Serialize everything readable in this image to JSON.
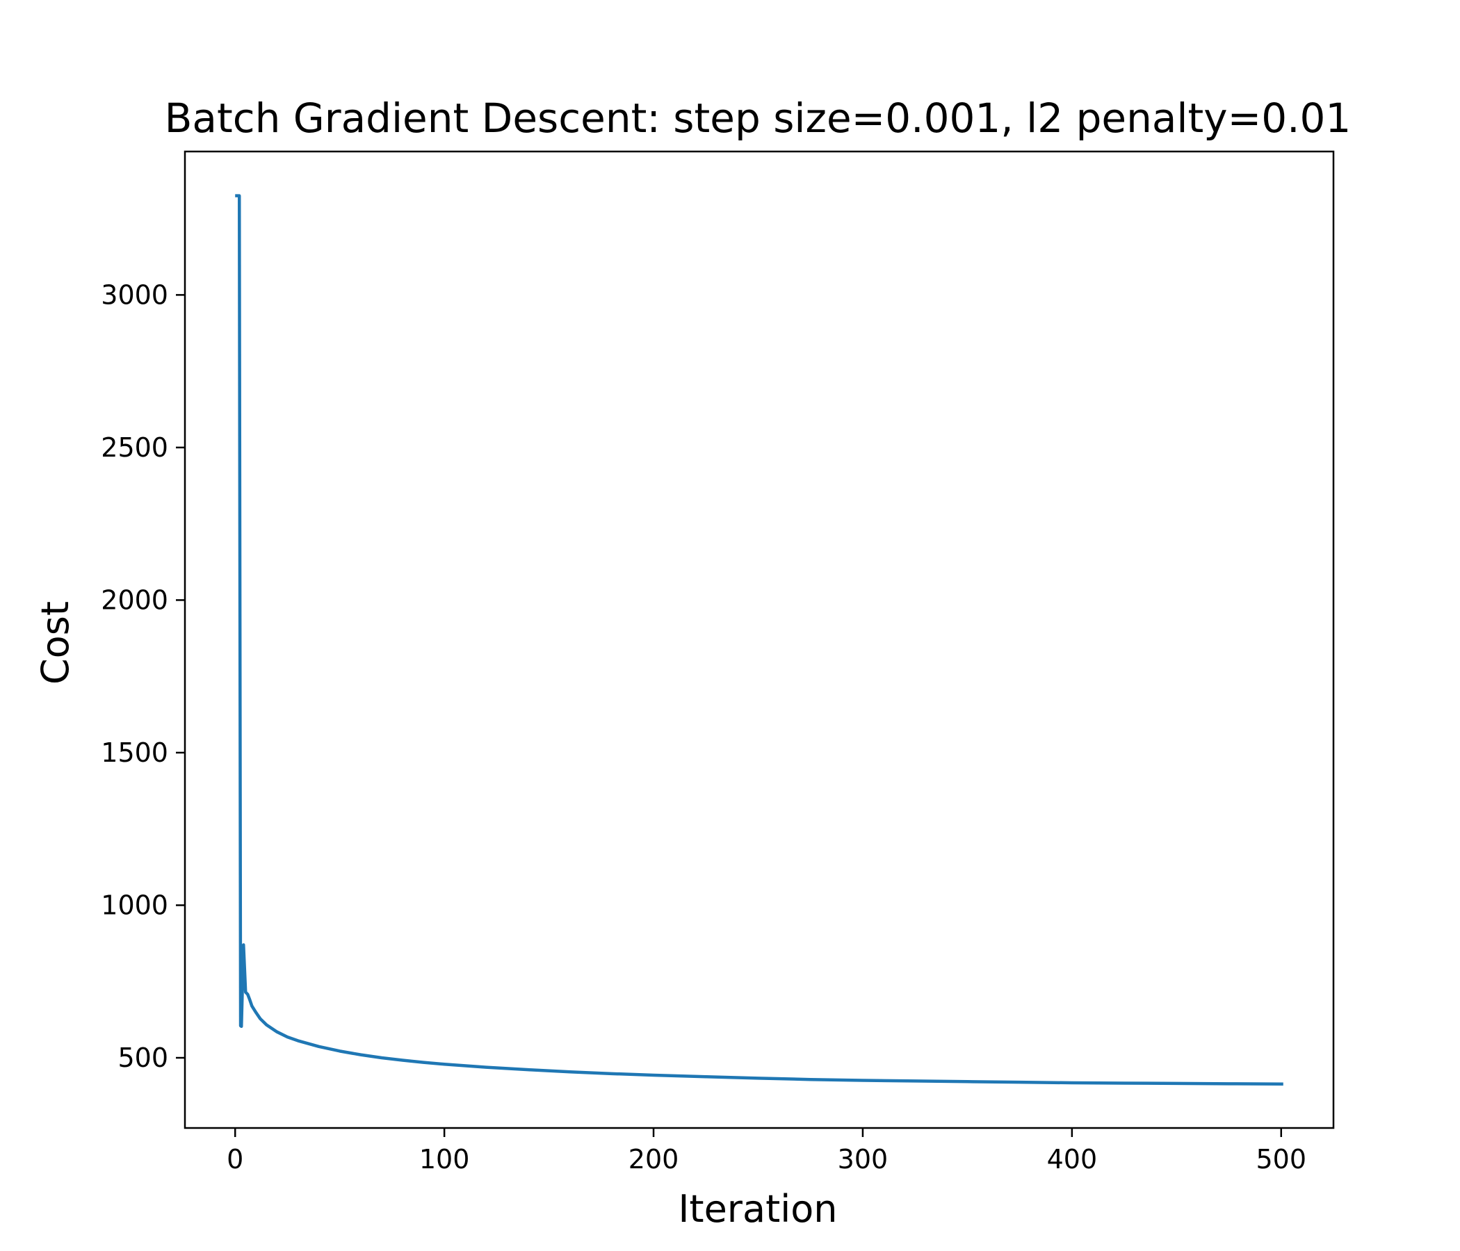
{
  "chart_data": {
    "type": "line",
    "title": "Batch Gradient Descent: step size=0.001, l2 penalty=0.01",
    "xlabel": "Iteration",
    "ylabel": "Cost",
    "xlim": [
      -24,
      525
    ],
    "ylim": [
      270,
      3470
    ],
    "xticks": [
      0,
      100,
      200,
      300,
      400,
      500
    ],
    "yticks": [
      500,
      1000,
      1500,
      2000,
      2500,
      3000
    ],
    "grid": false,
    "legend": "none",
    "color": "#1f77b4",
    "series": [
      {
        "x": [
          0,
          1,
          2,
          2.6,
          3,
          4,
          5,
          6,
          7,
          8,
          10,
          12,
          15,
          20,
          25,
          30,
          40,
          50,
          60,
          70,
          80,
          90,
          100,
          120,
          140,
          160,
          180,
          200,
          225,
          250,
          275,
          300,
          325,
          350,
          375,
          400,
          425,
          450,
          475,
          501
        ],
        "values": [
          3325,
          3325,
          3325,
          605,
          603,
          870,
          715,
          708,
          690,
          670,
          648,
          628,
          608,
          585,
          568,
          556,
          537,
          522,
          510,
          500,
          492,
          485,
          479,
          469,
          461,
          454,
          448,
          443,
          438,
          433,
          429,
          426,
          424,
          422,
          420,
          418,
          417,
          416,
          415,
          414
        ]
      }
    ]
  }
}
